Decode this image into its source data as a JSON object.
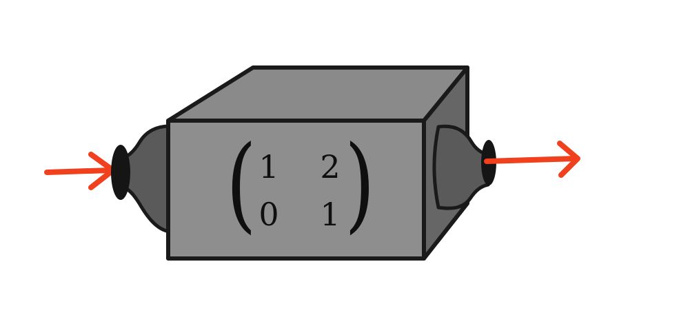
{
  "diagram": {
    "matrix": {
      "rows": [
        [
          "1",
          "2"
        ],
        [
          "0",
          "1"
        ]
      ],
      "left_bracket": "(",
      "right_bracket": ")"
    },
    "colors": {
      "box_front": "#8e8e8e",
      "box_top": "#8a8a8a",
      "box_side": "#666666",
      "nozzle": "#5a5a5a",
      "outline": "#1a1a1a",
      "arrow": "#f0401e"
    },
    "icons": {
      "input": "arrow-right-icon",
      "output": "arrow-right-icon"
    }
  }
}
